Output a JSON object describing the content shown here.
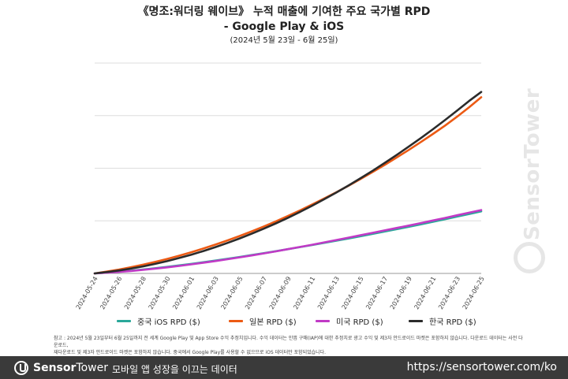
{
  "chart_data": {
    "type": "line",
    "title": "《명조:워더링 웨이브》 누적 매출에 기여한 주요 국가별 RPD",
    "subtitle": "- Google Play & iOS",
    "date_range": "(2024년 5월 23일 - 6월 25일)",
    "x": [
      "2024-05-24",
      "2024-05-25",
      "2024-05-26",
      "2024-05-27",
      "2024-05-28",
      "2024-05-29",
      "2024-05-30",
      "2024-05-31",
      "2024-06-01",
      "2024-06-02",
      "2024-06-03",
      "2024-06-04",
      "2024-06-05",
      "2024-06-06",
      "2024-06-07",
      "2024-06-08",
      "2024-06-09",
      "2024-06-10",
      "2024-06-11",
      "2024-06-12",
      "2024-06-13",
      "2024-06-14",
      "2024-06-15",
      "2024-06-16",
      "2024-06-17",
      "2024-06-18",
      "2024-06-19",
      "2024-06-20",
      "2024-06-21",
      "2024-06-22",
      "2024-06-23",
      "2024-06-24",
      "2024-06-25"
    ],
    "x_tick_labels": [
      "2024-05-24",
      "2024-05-26",
      "2024-05-28",
      "2024-05-30",
      "2024-06-01",
      "2024-06-03",
      "2024-06-05",
      "2024-06-07",
      "2024-06-09",
      "2024-06-11",
      "2024-06-13",
      "2024-06-15",
      "2024-06-17",
      "2024-06-19",
      "2024-06-21",
      "2024-06-23",
      "2024-06-25"
    ],
    "ylim": [
      0,
      4
    ],
    "y_ticks": [
      0,
      1,
      2,
      3,
      4
    ],
    "y_tick_labels_shown": false,
    "grid": "horizontal",
    "legend_position": "bottom",
    "series": [
      {
        "name": "중국 iOS RPD ($)",
        "color": "#2aa89a",
        "values": [
          0.0,
          0.015,
          0.033,
          0.053,
          0.075,
          0.099,
          0.125,
          0.153,
          0.182,
          0.213,
          0.245,
          0.279,
          0.313,
          0.349,
          0.385,
          0.423,
          0.461,
          0.5,
          0.54,
          0.581,
          0.622,
          0.664,
          0.707,
          0.751,
          0.796,
          0.841,
          0.887,
          0.934,
          0.982,
          1.03,
          1.08,
          1.13,
          1.18
        ]
      },
      {
        "name": "일본 RPD ($)",
        "color": "#ec5a14",
        "values": [
          0.0,
          0.035,
          0.074,
          0.118,
          0.166,
          0.218,
          0.275,
          0.337,
          0.403,
          0.473,
          0.548,
          0.628,
          0.712,
          0.8,
          0.893,
          0.991,
          1.092,
          1.198,
          1.309,
          1.424,
          1.543,
          1.666,
          1.794,
          1.926,
          2.062,
          2.203,
          2.348,
          2.497,
          2.651,
          2.81,
          2.98,
          3.16,
          3.35
        ]
      },
      {
        "name": "미국 RPD ($)",
        "color": "#c13ac6",
        "values": [
          0.0,
          0.013,
          0.029,
          0.047,
          0.068,
          0.091,
          0.116,
          0.143,
          0.172,
          0.203,
          0.235,
          0.269,
          0.305,
          0.342,
          0.38,
          0.42,
          0.461,
          0.503,
          0.546,
          0.59,
          0.635,
          0.68,
          0.726,
          0.772,
          0.818,
          0.864,
          0.91,
          0.958,
          1.006,
          1.055,
          1.105,
          1.155,
          1.205
        ]
      },
      {
        "name": "한국 RPD ($)",
        "color": "#2b2b2b",
        "values": [
          0.0,
          0.025,
          0.056,
          0.092,
          0.134,
          0.181,
          0.234,
          0.293,
          0.357,
          0.426,
          0.5,
          0.58,
          0.665,
          0.755,
          0.851,
          0.952,
          1.058,
          1.17,
          1.287,
          1.409,
          1.537,
          1.67,
          1.808,
          1.951,
          2.099,
          2.252,
          2.41,
          2.573,
          2.741,
          2.915,
          3.095,
          3.28,
          3.45
        ]
      }
    ]
  },
  "note": {
    "line1": "참고 : 2024년 5월 23일부터 6월 25일까지 전 세계 Google Play 및 App Store 수익 추정치입니다. 수익 데이터는 인앱 구매(IAP)에 대한 추정치로 광고 수익 및 제3자 안드로이드 마켓은 포함하지 않습니다. 다운로드 데이터는 사전 다운로드,",
    "line2": "재다운로드 및 제3자 안드로이드 마켓은 포함하지 않습니다. 중국에서 Google Play를 사용할 수 없으므로 iOS 데이터만 포함되었습니다."
  },
  "footer": {
    "brand_sensor": "Sensor",
    "brand_tower": "Tower",
    "tagline": "모바일 앱 성장을 이끄는 데이터",
    "url": "https://sensortower.com/ko"
  },
  "watermark": {
    "text": "SensorTower"
  },
  "colors": {
    "footer_bg": "#3a3a3a",
    "grid": "#dddddd",
    "axis": "#999999"
  }
}
